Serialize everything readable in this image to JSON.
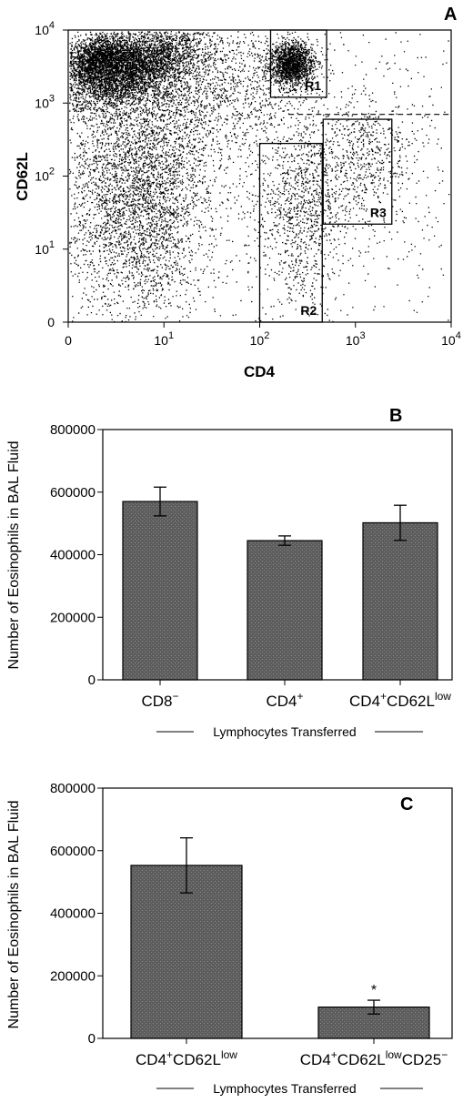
{
  "chart_data": [
    {
      "type": "scatter",
      "panel_label": "A",
      "xlabel": "CD4",
      "ylabel": "CD62L",
      "x_scale": "log",
      "y_scale": "log",
      "xlim": [
        0,
        10000
      ],
      "ylim": [
        0,
        10000
      ],
      "x_ticks": [
        {
          "base": "0",
          "exp": ""
        },
        {
          "base": "10",
          "exp": "1"
        },
        {
          "base": "10",
          "exp": "2"
        },
        {
          "base": "10",
          "exp": "3"
        },
        {
          "base": "10",
          "exp": "4"
        }
      ],
      "y_ticks": [
        {
          "base": "0",
          "exp": ""
        },
        {
          "base": "10",
          "exp": "1"
        },
        {
          "base": "10",
          "exp": "2"
        },
        {
          "base": "10",
          "exp": "3"
        },
        {
          "base": "10",
          "exp": "4"
        }
      ],
      "gates": [
        {
          "name": "R1",
          "x_range": [
            130,
            500
          ],
          "y_range": [
            1200,
            10000
          ]
        },
        {
          "name": "R2",
          "x_range": [
            100,
            450
          ],
          "y_range": [
            1,
            280
          ]
        },
        {
          "name": "R3",
          "x_range": [
            460,
            2400
          ],
          "y_range": [
            22,
            600
          ]
        }
      ],
      "threshold_y": 700,
      "grid": false
    },
    {
      "type": "bar",
      "panel_label": "B",
      "ylabel": "Number of Eosinophils in BAL Fluid",
      "group_label": "Lymphocytes Transferred",
      "categories": [
        {
          "base": "CD8",
          "sup1": "−",
          "mid": "",
          "sup2": "",
          "tail": ""
        },
        {
          "base": "CD4",
          "sup1": "+",
          "mid": "",
          "sup2": "",
          "tail": ""
        },
        {
          "base": "CD4",
          "sup1": "+",
          "mid": "CD62L",
          "sup2": "low",
          "tail": ""
        }
      ],
      "values": [
        570000,
        445000,
        502000
      ],
      "errors": [
        46000,
        15000,
        56000
      ],
      "ylim": [
        0,
        800000
      ],
      "y_ticks": [
        "0",
        "200000",
        "400000",
        "600000",
        "800000"
      ],
      "annotations": [],
      "grid": false
    },
    {
      "type": "bar",
      "panel_label": "C",
      "ylabel": "Number of Eosinophils in BAL Fluid",
      "group_label": "Lymphocytes Transferred",
      "categories": [
        {
          "base": "CD4",
          "sup1": "+",
          "mid": "CD62L",
          "sup2": "low",
          "tail": ""
        },
        {
          "base": "CD4",
          "sup1": "+",
          "mid": "CD62L",
          "sup2": "low",
          "tail": "CD25",
          "sup3": "−"
        }
      ],
      "values": [
        553000,
        100000
      ],
      "errors": [
        88000,
        22000
      ],
      "ylim": [
        0,
        800000
      ],
      "y_ticks": [
        "0",
        "200000",
        "400000",
        "600000",
        "800000"
      ],
      "annotations": [
        "",
        "*"
      ],
      "grid": false
    }
  ]
}
